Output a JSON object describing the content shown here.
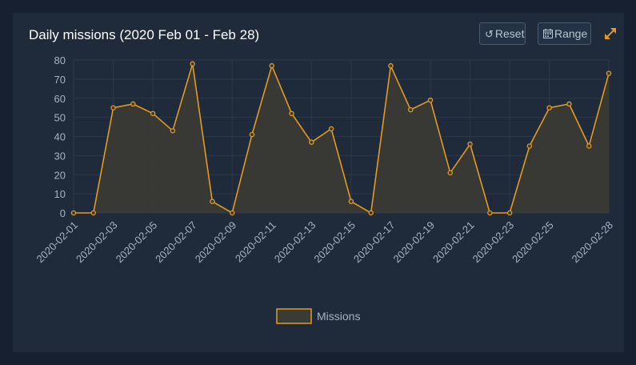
{
  "header": {
    "title": "Daily missions (2020 Feb 01 - Feb 28)",
    "reset_label": "Reset",
    "range_label": "Range",
    "reset_icon": "reset-icon",
    "range_icon": "calendar-icon",
    "expand_icon": "expand-icon"
  },
  "colors": {
    "line": "#e39a22",
    "fill": "#3b3b35",
    "grid": "#2c3848",
    "tick_text": "#a8b3c2"
  },
  "chart_data": {
    "type": "area",
    "title": "Daily missions (2020 Feb 01 - Feb 28)",
    "xlabel": "",
    "ylabel": "",
    "ylim": [
      0,
      80
    ],
    "yticks": [
      0,
      10,
      20,
      30,
      40,
      50,
      60,
      70,
      80
    ],
    "grid": true,
    "legend": "bottom",
    "x": [
      "2020-02-01",
      "2020-02-02",
      "2020-02-03",
      "2020-02-04",
      "2020-02-05",
      "2020-02-06",
      "2020-02-07",
      "2020-02-08",
      "2020-02-09",
      "2020-02-10",
      "2020-02-11",
      "2020-02-12",
      "2020-02-13",
      "2020-02-14",
      "2020-02-15",
      "2020-02-16",
      "2020-02-17",
      "2020-02-18",
      "2020-02-19",
      "2020-02-20",
      "2020-02-21",
      "2020-02-22",
      "2020-02-23",
      "2020-02-24",
      "2020-02-25",
      "2020-02-26",
      "2020-02-27",
      "2020-02-28"
    ],
    "xtick_labels": [
      "2020-02-01",
      "2020-02-03",
      "2020-02-05",
      "2020-02-07",
      "2020-02-09",
      "2020-02-11",
      "2020-02-13",
      "2020-02-15",
      "2020-02-17",
      "2020-02-19",
      "2020-02-21",
      "2020-02-23",
      "2020-02-25",
      "2020-02-28"
    ],
    "series": [
      {
        "name": "Missions",
        "values": [
          0,
          0,
          55,
          57,
          52,
          43,
          78,
          6,
          0,
          41,
          77,
          52,
          37,
          44,
          6,
          0,
          77,
          54,
          59,
          21,
          36,
          0,
          0,
          35,
          55,
          57,
          35,
          73
        ]
      }
    ]
  }
}
